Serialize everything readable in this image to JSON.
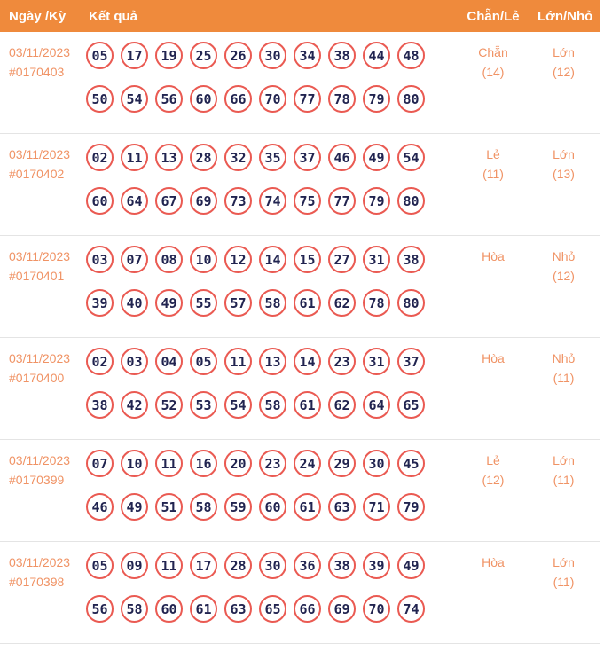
{
  "colors": {
    "header_bg": "#EF8A3C",
    "header_text": "#FFFFFF",
    "accent_salmon": "#F09365",
    "ball_border": "#EA5A52",
    "ball_text": "#212450",
    "divider": "#E4E4E4"
  },
  "header": {
    "col_date": "Ngày /Kỳ",
    "col_result": "Kết quả",
    "col_parity": "Chẵn/Lẻ",
    "col_size": "Lớn/Nhỏ"
  },
  "rows": [
    {
      "date": "03/11/2023",
      "draw_id": "#0170403",
      "numbers_line1": [
        "05",
        "17",
        "19",
        "25",
        "26",
        "30",
        "34",
        "38",
        "44",
        "48"
      ],
      "numbers_line2": [
        "50",
        "54",
        "56",
        "60",
        "66",
        "70",
        "77",
        "78",
        "79",
        "80"
      ],
      "parity_value": "Chẵn",
      "parity_count": "(14)",
      "size_value": "Lớn",
      "size_count": "(12)"
    },
    {
      "date": "03/11/2023",
      "draw_id": "#0170402",
      "numbers_line1": [
        "02",
        "11",
        "13",
        "28",
        "32",
        "35",
        "37",
        "46",
        "49",
        "54"
      ],
      "numbers_line2": [
        "60",
        "64",
        "67",
        "69",
        "73",
        "74",
        "75",
        "77",
        "79",
        "80"
      ],
      "parity_value": "Lẻ",
      "parity_count": "(11)",
      "size_value": "Lớn",
      "size_count": "(13)"
    },
    {
      "date": "03/11/2023",
      "draw_id": "#0170401",
      "numbers_line1": [
        "03",
        "07",
        "08",
        "10",
        "12",
        "14",
        "15",
        "27",
        "31",
        "38"
      ],
      "numbers_line2": [
        "39",
        "40",
        "49",
        "55",
        "57",
        "58",
        "61",
        "62",
        "78",
        "80"
      ],
      "parity_value": "Hòa",
      "parity_count": "",
      "size_value": "Nhỏ",
      "size_count": "(12)"
    },
    {
      "date": "03/11/2023",
      "draw_id": "#0170400",
      "numbers_line1": [
        "02",
        "03",
        "04",
        "05",
        "11",
        "13",
        "14",
        "23",
        "31",
        "37"
      ],
      "numbers_line2": [
        "38",
        "42",
        "52",
        "53",
        "54",
        "58",
        "61",
        "62",
        "64",
        "65"
      ],
      "parity_value": "Hòa",
      "parity_count": "",
      "size_value": "Nhỏ",
      "size_count": "(11)"
    },
    {
      "date": "03/11/2023",
      "draw_id": "#0170399",
      "numbers_line1": [
        "07",
        "10",
        "11",
        "16",
        "20",
        "23",
        "24",
        "29",
        "30",
        "45"
      ],
      "numbers_line2": [
        "46",
        "49",
        "51",
        "58",
        "59",
        "60",
        "61",
        "63",
        "71",
        "79"
      ],
      "parity_value": "Lẻ",
      "parity_count": "(12)",
      "size_value": "Lớn",
      "size_count": "(11)"
    },
    {
      "date": "03/11/2023",
      "draw_id": "#0170398",
      "numbers_line1": [
        "05",
        "09",
        "11",
        "17",
        "28",
        "30",
        "36",
        "38",
        "39",
        "49"
      ],
      "numbers_line2": [
        "56",
        "58",
        "60",
        "61",
        "63",
        "65",
        "66",
        "69",
        "70",
        "74"
      ],
      "parity_value": "Hòa",
      "parity_count": "",
      "size_value": "Lớn",
      "size_count": "(11)"
    }
  ]
}
